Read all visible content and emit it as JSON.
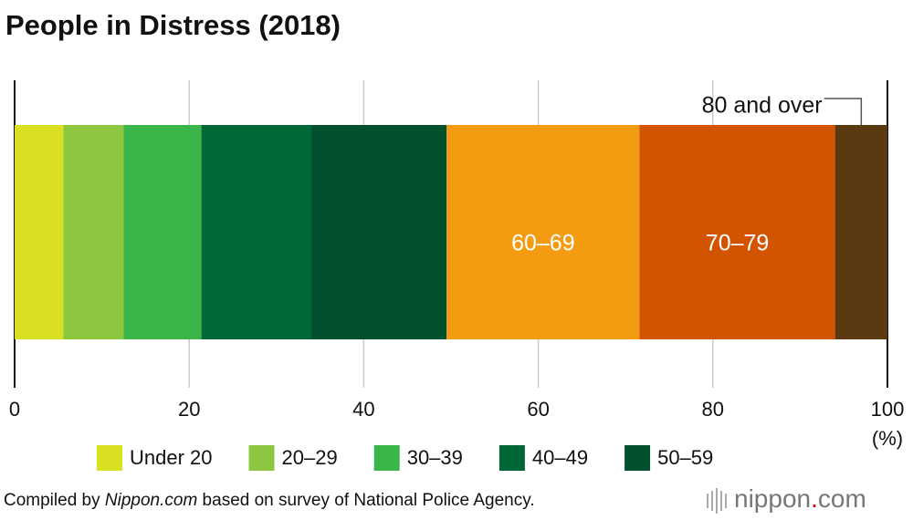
{
  "chart_data": {
    "type": "stacked-bar-horizontal",
    "title": "People in Distress (2018)",
    "xlabel": "(%)",
    "xlim": [
      0,
      100
    ],
    "xticks": [
      0,
      20,
      40,
      60,
      80,
      100
    ],
    "grid": true,
    "series": [
      {
        "name": "Under 20",
        "color": "#d9e021",
        "values": [
          5.6
        ],
        "label": "legend"
      },
      {
        "name": "20–29",
        "color": "#8dc63f",
        "values": [
          6.9
        ],
        "label": "legend"
      },
      {
        "name": "30–39",
        "color": "#39b54a",
        "values": [
          8.9
        ],
        "label": "legend"
      },
      {
        "name": "40–49",
        "color": "#006837",
        "values": [
          12.6
        ],
        "label": "legend"
      },
      {
        "name": "50–59",
        "color": "#00502e",
        "values": [
          15.5
        ],
        "label": "legend"
      },
      {
        "name": "60–69",
        "color": "#f39c12",
        "values": [
          22.1
        ],
        "label": "inside"
      },
      {
        "name": "70–79",
        "color": "#d35400",
        "values": [
          22.4
        ],
        "label": "inside"
      },
      {
        "name": "80 and over",
        "color": "#5c3a11",
        "values": [
          6.0
        ],
        "label": "callout"
      }
    ],
    "source": [
      "Compiled by ",
      "Nippon.com",
      " based on survey of National Police Agency."
    ],
    "logo": [
      "nippon",
      ".",
      "com"
    ]
  }
}
